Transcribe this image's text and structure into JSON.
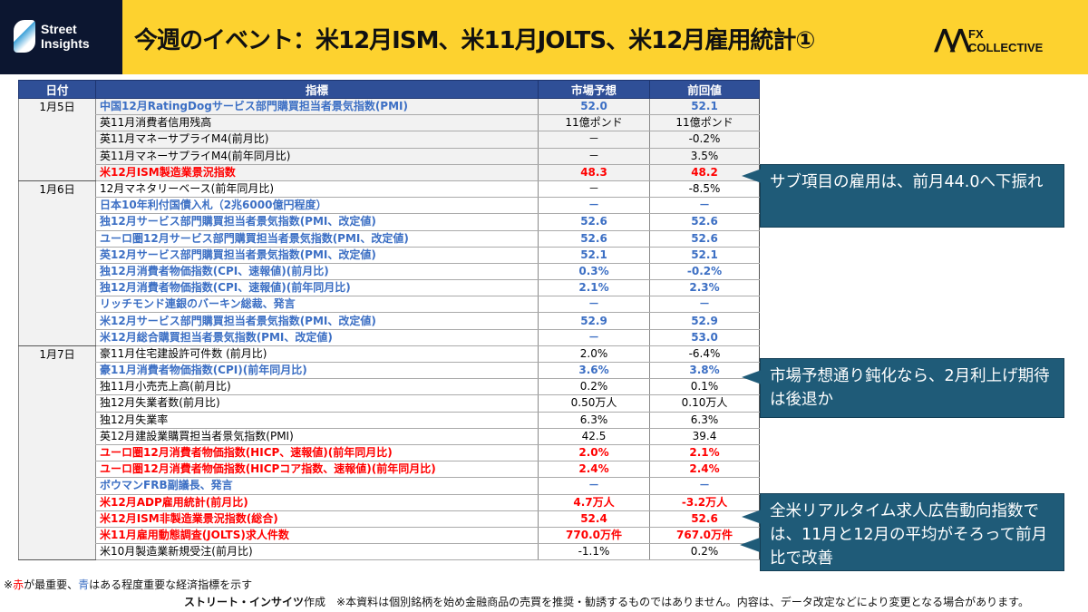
{
  "header": {
    "title": "今週のイベント：米12月ISM、米11月JOLTS、米12月雇用統計①",
    "logo_left": "Street Insights",
    "logo_right": "FX COLLECTIVE"
  },
  "table": {
    "headers": [
      "日付",
      "指標",
      "市場予想",
      "前回値"
    ],
    "groups": [
      {
        "date": "1月5日",
        "rows": [
          {
            "name": "中国12月RatingDogサービス部門購買担当者景気指数(PMI)",
            "forecast": "52.0",
            "previous": "52.1",
            "importance": "blue"
          },
          {
            "name": "英11月消費者信用残高",
            "forecast": "11億ポンド",
            "previous": "11億ポンド",
            "importance": "normal"
          },
          {
            "name": "英11月マネーサプライM4(前月比)",
            "forecast": "－",
            "previous": "-0.2%",
            "importance": "normal"
          },
          {
            "name": "英11月マネーサプライM4(前年同月比)",
            "forecast": "－",
            "previous": "3.5%",
            "importance": "normal"
          },
          {
            "name": "米12月ISM製造業景況指数",
            "forecast": "48.3",
            "previous": "48.2",
            "importance": "red"
          }
        ]
      },
      {
        "date": "1月6日",
        "rows": [
          {
            "name": "12月マネタリーベース(前年同月比)",
            "forecast": "－",
            "previous": "-8.5%",
            "importance": "normal"
          },
          {
            "name": "日本10年利付国債入札（2兆6000億円程度）",
            "forecast": "－",
            "previous": "－",
            "importance": "blue"
          },
          {
            "name": "独12月サービス部門購買担当者景気指数(PMI、改定値)",
            "forecast": "52.6",
            "previous": "52.6",
            "importance": "blue"
          },
          {
            "name": "ユーロ圏12月サービス部門購買担当者景気指数(PMI、改定値)",
            "forecast": "52.6",
            "previous": "52.6",
            "importance": "blue"
          },
          {
            "name": "英12月サービス部門購買担当者景気指数(PMI、改定値)",
            "forecast": "52.1",
            "previous": "52.1",
            "importance": "blue"
          },
          {
            "name": "独12月消費者物価指数(CPI、速報値)(前月比)",
            "forecast": "0.3%",
            "previous": "-0.2%",
            "importance": "blue"
          },
          {
            "name": "独12月消費者物価指数(CPI、速報値)(前年同月比)",
            "forecast": "2.1%",
            "previous": "2.3%",
            "importance": "blue"
          },
          {
            "name": "リッチモンド連銀のバーキン総裁、発言",
            "forecast": "－",
            "previous": "－",
            "importance": "blue"
          },
          {
            "name": "米12月サービス部門購買担当者景気指数(PMI、改定値)",
            "forecast": "52.9",
            "previous": "52.9",
            "importance": "blue"
          },
          {
            "name": "米12月総合購買担当者景気指数(PMI、改定値)",
            "forecast": "－",
            "previous": "53.0",
            "importance": "blue"
          }
        ]
      },
      {
        "date": "1月7日",
        "rows": [
          {
            "name": "豪11月住宅建設許可件数 (前月比)",
            "forecast": "2.0%",
            "previous": "-6.4%",
            "importance": "normal"
          },
          {
            "name": "豪11月消費者物価指数(CPI)(前年同月比)",
            "forecast": "3.6%",
            "previous": "3.8%",
            "importance": "blue"
          },
          {
            "name": "独11月小売売上高(前月比)",
            "forecast": "0.2%",
            "previous": "0.1%",
            "importance": "normal"
          },
          {
            "name": "独12月失業者数(前月比)",
            "forecast": "0.50万人",
            "previous": "0.10万人",
            "importance": "normal"
          },
          {
            "name": "独12月失業率",
            "forecast": "6.3%",
            "previous": "6.3%",
            "importance": "normal"
          },
          {
            "name": "英12月建設業購買担当者景気指数(PMI)",
            "forecast": "42.5",
            "previous": "39.4",
            "importance": "normal"
          },
          {
            "name": "ユーロ圏12月消費者物価指数(HICP、速報値)(前年同月比)",
            "forecast": "2.0%",
            "previous": "2.1%",
            "importance": "red"
          },
          {
            "name": "ユーロ圏12月消費者物価指数(HICPコア指数、速報値)(前年同月比)",
            "forecast": "2.4%",
            "previous": "2.4%",
            "importance": "red"
          },
          {
            "name": "ボウマンFRB副議長、発言",
            "forecast": "－",
            "previous": "－",
            "importance": "blue"
          },
          {
            "name": "米12月ADP雇用統計(前月比)",
            "forecast": "4.7万人",
            "previous": "-3.2万人",
            "importance": "red"
          },
          {
            "name": "米12月ISM非製造業景況指数(総合)",
            "forecast": "52.4",
            "previous": "52.6",
            "importance": "red"
          },
          {
            "name": "米11月雇用動態調査(JOLTS)求人件数",
            "forecast": "770.0万件",
            "previous": "767.0万件",
            "importance": "red"
          },
          {
            "name": "米10月製造業新規受注(前月比)",
            "forecast": "-1.1%",
            "previous": "0.2%",
            "importance": "normal"
          }
        ]
      }
    ]
  },
  "callouts": [
    "サブ項目の雇用は、前月44.0へ下振れ",
    "市場予想通り鈍化なら、2月利上げ期待は後退か",
    "全米リアルタイム求人広告動向指数では、11月と12月の平均がそろって前月比で改善"
  ],
  "note": {
    "prefix": "※",
    "red": "赤",
    "mid": "が最重要、",
    "blue": "青",
    "suffix": "はある程度重要な経済指標を示す"
  },
  "footer": {
    "credit": "ストリート・インサイツ",
    "credit_suffix": "作成",
    "disclaimer": "※本資料は個別銘柄を始め金融商品の売買を推奨・勧誘するものではありません。内容は、データ改定などにより変更となる場合があります。"
  },
  "colors": {
    "header_bg": "#fdd22f",
    "table_header": "#2f4f97",
    "red": "#ff0000",
    "blue": "#3c6fc4",
    "callout": "#1f5b78"
  }
}
